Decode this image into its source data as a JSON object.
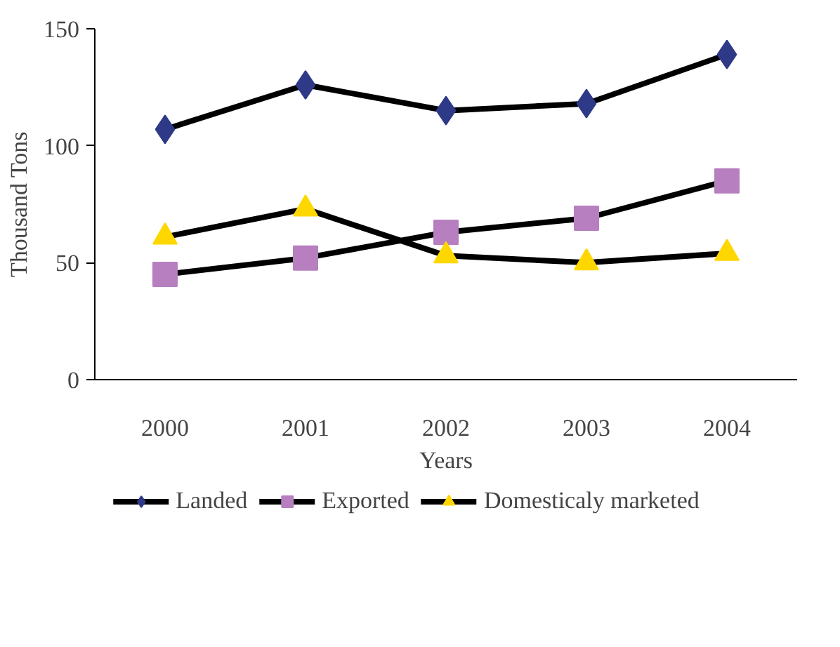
{
  "chart_data": {
    "type": "line",
    "xlabel": "Years",
    "ylabel": "Thousand Tons",
    "categories": [
      "2000",
      "2001",
      "2002",
      "2003",
      "2004"
    ],
    "ylim": [
      0,
      150
    ],
    "yticks": [
      0,
      50,
      100,
      150
    ],
    "grid": false,
    "legend": "bottom",
    "line_style": "solid",
    "series": [
      {
        "name": "Landed",
        "color": "#2e3a87",
        "marker": "diamond",
        "values": [
          107,
          126,
          115,
          118,
          139
        ]
      },
      {
        "name": "Exported",
        "color": "#b77fc0",
        "marker": "square",
        "values": [
          45,
          52,
          63,
          69,
          85
        ]
      },
      {
        "name": "Domesticaly marketed",
        "color": "#ffd700",
        "marker": "triangle",
        "values": [
          61,
          73,
          53,
          50,
          54
        ]
      }
    ]
  }
}
